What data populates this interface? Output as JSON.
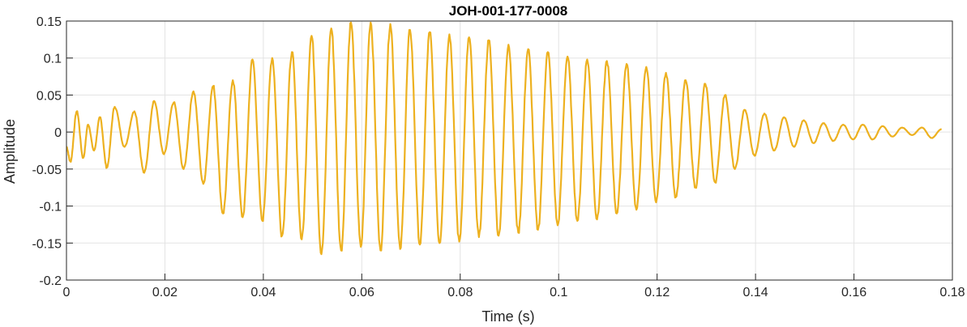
{
  "chart_data": {
    "type": "line",
    "title": "JOH-001-177-0008",
    "xlabel": "Time (s)",
    "ylabel": "Amplitude",
    "xlim": [
      0,
      0.18
    ],
    "ylim": [
      -0.2,
      0.15
    ],
    "xticks": [
      0,
      0.02,
      0.04,
      0.06,
      0.08,
      0.1,
      0.12,
      0.14,
      0.16,
      0.18
    ],
    "xtick_labels": [
      "0",
      "0.02",
      "0.04",
      "0.06",
      "0.08",
      "0.1",
      "0.12",
      "0.14",
      "0.16",
      "0.18"
    ],
    "yticks": [
      -0.2,
      -0.15,
      -0.1,
      -0.05,
      0,
      0.05,
      0.1,
      0.15
    ],
    "ytick_labels": [
      "-0.2",
      "-0.15",
      "-0.1",
      "-0.05",
      "0",
      "0.05",
      "0.1",
      "0.15"
    ],
    "grid": true,
    "line_color": "#EDB120",
    "series": [
      {
        "x": [
          0.0,
          0.0008,
          0.0021,
          0.0034,
          0.0044,
          0.0056,
          0.0068,
          0.0082,
          0.0098,
          0.0118,
          0.0138,
          0.0158,
          0.0178,
          0.0198,
          0.0218,
          0.0238,
          0.0258,
          0.0278,
          0.0298,
          0.0318,
          0.0338,
          0.0358,
          0.0378,
          0.0398,
          0.0418,
          0.0438,
          0.0458,
          0.0478,
          0.0498,
          0.0518,
          0.0538,
          0.0558,
          0.0578,
          0.0598,
          0.0618,
          0.0638,
          0.0658,
          0.0678,
          0.0698,
          0.0718,
          0.0738,
          0.0758,
          0.0778,
          0.0798,
          0.0818,
          0.0838,
          0.0858,
          0.0878,
          0.0898,
          0.0918,
          0.0938,
          0.0958,
          0.0978,
          0.0998,
          0.1018,
          0.1038,
          0.1058,
          0.1078,
          0.1098,
          0.1118,
          0.1138,
          0.1158,
          0.1178,
          0.1198,
          0.1218,
          0.1238,
          0.1258,
          0.1278,
          0.1298,
          0.1318,
          0.1338,
          0.1358,
          0.1378,
          0.1398,
          0.1418,
          0.1438,
          0.1458,
          0.1478,
          0.1498,
          0.1518,
          0.1538,
          0.1558,
          0.1578,
          0.1598,
          0.1618,
          0.1638,
          0.1658,
          0.1678,
          0.1698,
          0.1718,
          0.1738,
          0.1758,
          0.1778
        ],
        "y": [
          -0.02,
          -0.04,
          0.028,
          -0.035,
          0.01,
          -0.025,
          0.02,
          -0.048,
          0.034,
          -0.02,
          0.028,
          -0.055,
          0.042,
          -0.03,
          0.04,
          -0.05,
          0.055,
          -0.07,
          0.062,
          -0.11,
          0.07,
          -0.115,
          0.098,
          -0.12,
          0.1,
          -0.14,
          0.108,
          -0.145,
          0.13,
          -0.165,
          0.14,
          -0.16,
          0.148,
          -0.155,
          0.148,
          -0.16,
          0.146,
          -0.158,
          0.138,
          -0.152,
          0.135,
          -0.15,
          0.132,
          -0.148,
          0.128,
          -0.142,
          0.124,
          -0.14,
          0.118,
          -0.136,
          0.112,
          -0.132,
          0.108,
          -0.126,
          0.102,
          -0.12,
          0.098,
          -0.118,
          0.096,
          -0.11,
          0.092,
          -0.105,
          0.088,
          -0.095,
          0.08,
          -0.088,
          0.07,
          -0.075,
          0.065,
          -0.068,
          0.05,
          -0.05,
          0.03,
          -0.032,
          0.025,
          -0.025,
          0.02,
          -0.02,
          0.016,
          -0.015,
          0.012,
          -0.012,
          0.01,
          -0.01,
          0.01,
          -0.01,
          0.008,
          -0.006,
          0.006,
          -0.004,
          0.006,
          -0.008,
          0.004
        ]
      }
    ]
  }
}
